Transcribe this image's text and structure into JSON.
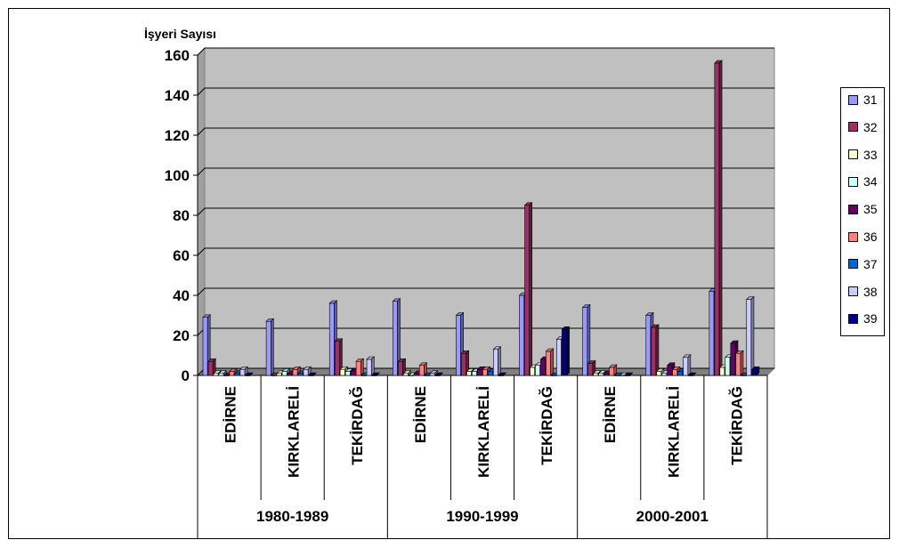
{
  "chart_data": {
    "type": "bar",
    "title": "",
    "ylabel": "İşyeri Sayısı",
    "xlabel": "",
    "ylim": [
      0,
      160
    ],
    "yticks": [
      0,
      20,
      40,
      60,
      80,
      100,
      120,
      140,
      160
    ],
    "groups": [
      {
        "period": "1980-1989",
        "regions": [
          "EDİRNE",
          "KIRKLARELİ",
          "TEKİRDAĞ"
        ]
      },
      {
        "period": "1990-1999",
        "regions": [
          "EDİRNE",
          "KIRKLARELİ",
          "TEKİRDAĞ"
        ]
      },
      {
        "period": "2000-2001",
        "regions": [
          "EDİRNE",
          "KIRKLARELİ",
          "TEKİRDAĞ"
        ]
      }
    ],
    "categories": [
      "1980-1989 EDİRNE",
      "1980-1989 KIRKLARELİ",
      "1980-1989 TEKİRDAĞ",
      "1990-1999 EDİRNE",
      "1990-1999 KIRKLARELİ",
      "1990-1999 TEKİRDAĞ",
      "2000-2001 EDİRNE",
      "2000-2001 KIRKLARELİ",
      "2000-2001 TEKİRDAĞ"
    ],
    "series": [
      {
        "name": "31",
        "color": "#9999ff",
        "values": [
          29,
          27,
          36,
          37,
          30,
          40,
          34,
          30,
          42
        ]
      },
      {
        "name": "32",
        "color": "#993366",
        "values": [
          7,
          0,
          17,
          7,
          11,
          85,
          6,
          24,
          156
        ]
      },
      {
        "name": "33",
        "color": "#ffffcc",
        "values": [
          1,
          1,
          3,
          1,
          2,
          4,
          1,
          2,
          4
        ]
      },
      {
        "name": "34",
        "color": "#ccffff",
        "values": [
          1,
          2,
          2,
          0,
          2,
          5,
          1,
          1,
          9
        ]
      },
      {
        "name": "35",
        "color": "#660066",
        "values": [
          0,
          1,
          2,
          1,
          3,
          8,
          1,
          5,
          16
        ]
      },
      {
        "name": "36",
        "color": "#ff8080",
        "values": [
          2,
          3,
          7,
          5,
          3,
          12,
          4,
          3,
          11
        ]
      },
      {
        "name": "37",
        "color": "#0066cc",
        "values": [
          1,
          1,
          0,
          0,
          2,
          0,
          0,
          2,
          0
        ]
      },
      {
        "name": "38",
        "color": "#ccccff",
        "values": [
          3,
          3,
          8,
          1,
          13,
          18,
          0,
          9,
          38
        ]
      },
      {
        "name": "39",
        "color": "#000080",
        "values": [
          0,
          0,
          0,
          0,
          0,
          23,
          0,
          0,
          3
        ]
      }
    ],
    "grid": true,
    "legend_position": "right"
  }
}
